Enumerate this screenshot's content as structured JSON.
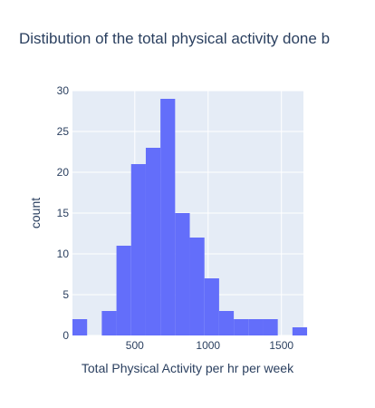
{
  "chart_data": {
    "type": "bar",
    "title": "Distibution of the total physical activity done b",
    "xlabel": "Total Physical Activity per hr per week",
    "ylabel": "count",
    "xlim": [
      75,
      1650
    ],
    "ylim": [
      0,
      30
    ],
    "x_ticks": [
      500,
      1000,
      1500
    ],
    "y_ticks": [
      0,
      5,
      10,
      15,
      20,
      25,
      30
    ],
    "bins": [
      {
        "start": 75,
        "end": 175,
        "count": 2
      },
      {
        "start": 175,
        "end": 275,
        "count": 0
      },
      {
        "start": 275,
        "end": 375,
        "count": 3
      },
      {
        "start": 375,
        "end": 475,
        "count": 11
      },
      {
        "start": 475,
        "end": 575,
        "count": 21
      },
      {
        "start": 575,
        "end": 675,
        "count": 23
      },
      {
        "start": 675,
        "end": 775,
        "count": 29
      },
      {
        "start": 775,
        "end": 875,
        "count": 15
      },
      {
        "start": 875,
        "end": 975,
        "count": 12
      },
      {
        "start": 975,
        "end": 1075,
        "count": 7
      },
      {
        "start": 1075,
        "end": 1175,
        "count": 3
      },
      {
        "start": 1175,
        "end": 1275,
        "count": 2
      },
      {
        "start": 1275,
        "end": 1375,
        "count": 2
      },
      {
        "start": 1375,
        "end": 1475,
        "count": 2
      },
      {
        "start": 1475,
        "end": 1575,
        "count": 0
      },
      {
        "start": 1575,
        "end": 1675,
        "count": 1
      }
    ],
    "colors": {
      "bar": "#636efa",
      "plot_bg": "#e5ecf6",
      "grid": "#ffffff",
      "text": "#2a3f5f"
    },
    "grid": true
  }
}
